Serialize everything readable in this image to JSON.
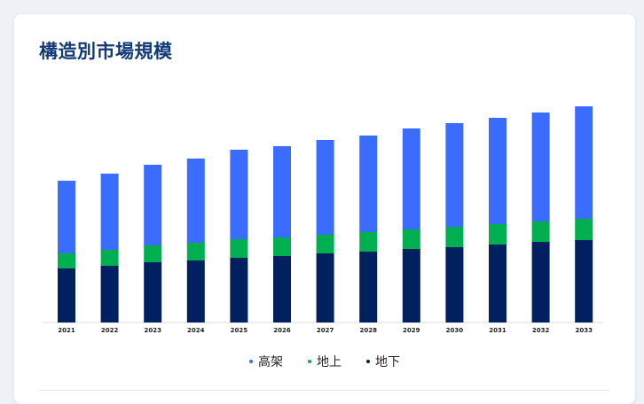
{
  "page": {
    "title": "構造別市場規模"
  },
  "chart_data": {
    "type": "bar",
    "stacked": true,
    "categories": [
      "2021",
      "2022",
      "2023",
      "2024",
      "2025",
      "2026",
      "2027",
      "2028",
      "2029",
      "2030",
      "2031",
      "2032",
      "2033"
    ],
    "series": [
      {
        "name": "地下",
        "color": "#002060",
        "values": [
          61,
          64,
          68,
          70,
          73,
          75,
          78,
          80,
          83,
          85,
          88,
          91,
          93
        ]
      },
      {
        "name": "地上",
        "color": "#00b050",
        "values": [
          17,
          18,
          19,
          20,
          21,
          21,
          21,
          22,
          22,
          23,
          23,
          23,
          24
        ]
      },
      {
        "name": "高架",
        "color": "#3a6cff",
        "values": [
          82,
          86,
          91,
          95,
          101,
          103,
          107,
          109,
          114,
          117,
          120,
          123,
          127
        ]
      }
    ],
    "legend_order": [
      "高架",
      "地上",
      "地下"
    ],
    "legend_position": "bottom",
    "ylim": [
      0,
      250
    ],
    "grid": false,
    "title": "",
    "xlabel": "",
    "ylabel": ""
  }
}
